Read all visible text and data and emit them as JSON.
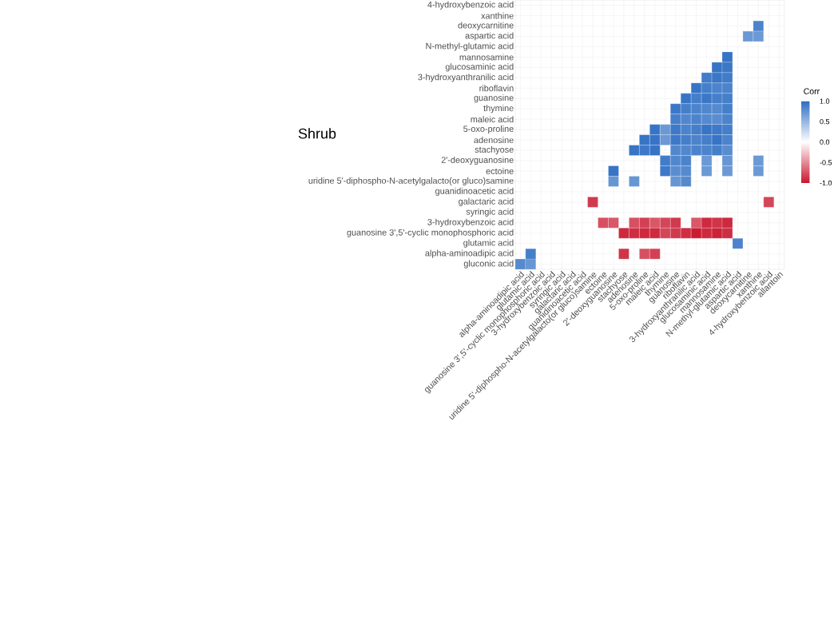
{
  "chart_data": {
    "type": "heatmap",
    "title": "Shrub",
    "clabel": "Corr",
    "categories": [
      "alpha-aminoadipic acid",
      "glutamic acid",
      "guanosine 3',5'-cyclic monophosphoric acid",
      "3-hydroxybenzoic acid",
      "syringic acid",
      "galactaric acid",
      "guanidinoacetic acid",
      "uridine 5'-diphospho-N-acetylgalacto(or gluco)samine",
      "ectoine",
      "2'-deoxyguanosine",
      "stachyose",
      "adenosine",
      "5-oxo-proline",
      "maleic acid",
      "thymine",
      "guanosine",
      "riboflavin",
      "3-hydroxyanthranilic acid",
      "glucosaminic acid",
      "mannosamine",
      "N-methyl-glutamic acid",
      "aspartic acid",
      "deoxycarnitine",
      "xanthine",
      "4-hydroxybenzoic acid",
      "allantoin"
    ],
    "y_categories": [
      "4-hydroxybenzoic acid",
      "xanthine",
      "deoxycarnitine",
      "aspartic acid",
      "N-methyl-glutamic acid",
      "mannosamine",
      "glucosaminic acid",
      "3-hydroxyanthranilic acid",
      "riboflavin",
      "guanosine",
      "thymine",
      "maleic acid",
      "5-oxo-proline",
      "adenosine",
      "stachyose",
      "2'-deoxyguanosine",
      "ectoine",
      "uridine 5'-diphospho-N-acetylgalacto(or gluco)samine",
      "guanidinoacetic acid",
      "galactaric acid",
      "syringic acid",
      "3-hydroxybenzoic acid",
      "guanosine 3',5'-cyclic monophosphoric acid",
      "glutamic acid",
      "alpha-aminoadipic acid",
      "gluconic acid"
    ],
    "cells": [
      [
        null,
        null,
        null,
        null,
        null,
        null,
        null,
        null,
        null,
        null,
        null,
        null,
        null,
        null,
        null,
        null,
        null,
        null,
        null,
        null,
        null,
        null,
        null,
        null,
        null,
        null
      ],
      [
        null,
        null,
        null,
        null,
        null,
        null,
        null,
        null,
        null,
        null,
        null,
        null,
        null,
        null,
        null,
        null,
        null,
        null,
        null,
        null,
        null,
        null,
        null,
        null,
        null,
        null
      ],
      [
        null,
        null,
        null,
        null,
        null,
        null,
        null,
        null,
        null,
        null,
        null,
        null,
        null,
        null,
        null,
        null,
        null,
        null,
        null,
        null,
        null,
        null,
        null,
        0.85,
        null,
        null
      ],
      [
        null,
        null,
        null,
        null,
        null,
        null,
        null,
        null,
        null,
        null,
        null,
        null,
        null,
        null,
        null,
        null,
        null,
        null,
        null,
        null,
        null,
        null,
        0.7,
        0.7,
        null,
        null
      ],
      [
        null,
        null,
        null,
        null,
        null,
        null,
        null,
        null,
        null,
        null,
        null,
        null,
        null,
        null,
        null,
        null,
        null,
        null,
        null,
        null,
        null,
        null,
        null,
        null,
        null,
        null
      ],
      [
        null,
        null,
        null,
        null,
        null,
        null,
        null,
        null,
        null,
        null,
        null,
        null,
        null,
        null,
        null,
        null,
        null,
        null,
        null,
        null,
        0.95,
        null,
        null,
        null,
        null,
        null
      ],
      [
        null,
        null,
        null,
        null,
        null,
        null,
        null,
        null,
        null,
        null,
        null,
        null,
        null,
        null,
        null,
        null,
        null,
        null,
        null,
        0.95,
        0.93,
        null,
        null,
        null,
        null,
        null
      ],
      [
        null,
        null,
        null,
        null,
        null,
        null,
        null,
        null,
        null,
        null,
        null,
        null,
        null,
        null,
        null,
        null,
        null,
        null,
        0.9,
        0.93,
        0.9,
        null,
        null,
        null,
        null,
        null
      ],
      [
        null,
        null,
        null,
        null,
        null,
        null,
        null,
        null,
        null,
        null,
        null,
        null,
        null,
        null,
        null,
        null,
        null,
        0.95,
        0.88,
        0.85,
        0.85,
        null,
        null,
        null,
        null,
        null
      ],
      [
        null,
        null,
        null,
        null,
        null,
        null,
        null,
        null,
        null,
        null,
        null,
        null,
        null,
        null,
        null,
        null,
        0.95,
        0.88,
        0.93,
        0.88,
        0.88,
        null,
        null,
        null,
        null,
        null
      ],
      [
        null,
        null,
        null,
        null,
        null,
        null,
        null,
        null,
        null,
        null,
        null,
        null,
        null,
        null,
        null,
        0.93,
        0.88,
        0.85,
        0.82,
        0.8,
        0.88,
        null,
        null,
        null,
        null,
        null
      ],
      [
        null,
        null,
        null,
        null,
        null,
        null,
        null,
        null,
        null,
        null,
        null,
        null,
        null,
        null,
        null,
        0.88,
        0.82,
        0.85,
        0.8,
        0.78,
        0.85,
        null,
        null,
        null,
        null,
        null
      ],
      [
        null,
        null,
        null,
        null,
        null,
        null,
        null,
        null,
        null,
        null,
        null,
        null,
        null,
        0.95,
        0.7,
        0.92,
        0.85,
        0.88,
        0.95,
        0.92,
        0.88,
        null,
        null,
        null,
        null,
        null
      ],
      [
        null,
        null,
        null,
        null,
        null,
        null,
        null,
        null,
        null,
        null,
        null,
        null,
        0.95,
        0.95,
        0.7,
        0.92,
        0.88,
        0.85,
        0.88,
        0.95,
        0.85,
        null,
        null,
        null,
        null,
        null
      ],
      [
        null,
        null,
        null,
        null,
        null,
        null,
        null,
        null,
        null,
        null,
        null,
        0.95,
        0.92,
        0.95,
        null,
        0.82,
        0.82,
        0.85,
        0.85,
        0.88,
        0.78,
        null,
        null,
        null,
        null,
        null
      ],
      [
        null,
        null,
        null,
        null,
        null,
        null,
        null,
        null,
        null,
        null,
        null,
        null,
        null,
        null,
        0.9,
        0.82,
        0.85,
        null,
        0.7,
        null,
        0.72,
        null,
        null,
        0.7,
        null,
        null
      ],
      [
        null,
        null,
        null,
        null,
        null,
        null,
        null,
        null,
        null,
        0.95,
        null,
        null,
        null,
        null,
        0.92,
        0.78,
        0.8,
        null,
        0.7,
        null,
        0.7,
        null,
        null,
        0.7,
        null,
        null
      ],
      [
        null,
        null,
        null,
        null,
        null,
        null,
        null,
        null,
        null,
        0.72,
        null,
        0.72,
        null,
        null,
        null,
        0.72,
        0.8,
        null,
        null,
        null,
        null,
        null,
        null,
        null,
        null,
        null
      ],
      [
        null,
        null,
        null,
        null,
        null,
        null,
        null,
        null,
        null,
        null,
        null,
        null,
        null,
        null,
        null,
        null,
        null,
        null,
        null,
        null,
        null,
        null,
        null,
        null,
        null,
        null
      ],
      [
        null,
        null,
        null,
        null,
        null,
        null,
        null,
        -0.85,
        null,
        null,
        null,
        null,
        null,
        null,
        null,
        null,
        null,
        null,
        null,
        null,
        null,
        null,
        null,
        null,
        -0.8,
        null
      ],
      [
        null,
        null,
        null,
        null,
        null,
        null,
        null,
        null,
        null,
        null,
        null,
        null,
        null,
        null,
        null,
        null,
        null,
        null,
        null,
        null,
        null,
        null,
        null,
        null,
        null,
        null
      ],
      [
        null,
        null,
        null,
        null,
        null,
        null,
        null,
        null,
        -0.75,
        -0.72,
        null,
        -0.75,
        -0.82,
        -0.72,
        -0.8,
        -0.85,
        null,
        -0.72,
        -0.92,
        -0.87,
        -0.92,
        null,
        null,
        null,
        null,
        null
      ],
      [
        null,
        null,
        null,
        null,
        null,
        null,
        null,
        null,
        null,
        null,
        -0.92,
        -0.9,
        -0.92,
        -0.92,
        -0.8,
        -0.85,
        -0.9,
        -0.98,
        -0.92,
        -0.95,
        -0.9,
        null,
        null,
        null,
        null,
        null
      ],
      [
        null,
        null,
        null,
        null,
        null,
        null,
        null,
        null,
        null,
        null,
        null,
        null,
        null,
        null,
        null,
        null,
        null,
        null,
        null,
        null,
        null,
        0.85,
        null,
        null,
        null,
        null
      ],
      [
        null,
        0.88,
        null,
        null,
        null,
        null,
        null,
        null,
        null,
        null,
        -0.87,
        null,
        -0.75,
        -0.82,
        null,
        null,
        null,
        null,
        null,
        null,
        null,
        null,
        null,
        null,
        null,
        null
      ],
      [
        0.8,
        0.72,
        null,
        null,
        null,
        null,
        null,
        null,
        null,
        null,
        null,
        null,
        null,
        null,
        null,
        null,
        null,
        null,
        null,
        null,
        null,
        null,
        null,
        null,
        null,
        null
      ]
    ],
    "clim": [
      -1,
      1
    ],
    "cticks": [
      {
        "value": -1,
        "label": "-1.0"
      },
      {
        "value": -0.5,
        "label": "-0.5"
      },
      {
        "value": 0,
        "label": "0.0"
      },
      {
        "value": 0.5,
        "label": "0.5"
      },
      {
        "value": 1,
        "label": "1.0"
      }
    ],
    "grid": true
  }
}
